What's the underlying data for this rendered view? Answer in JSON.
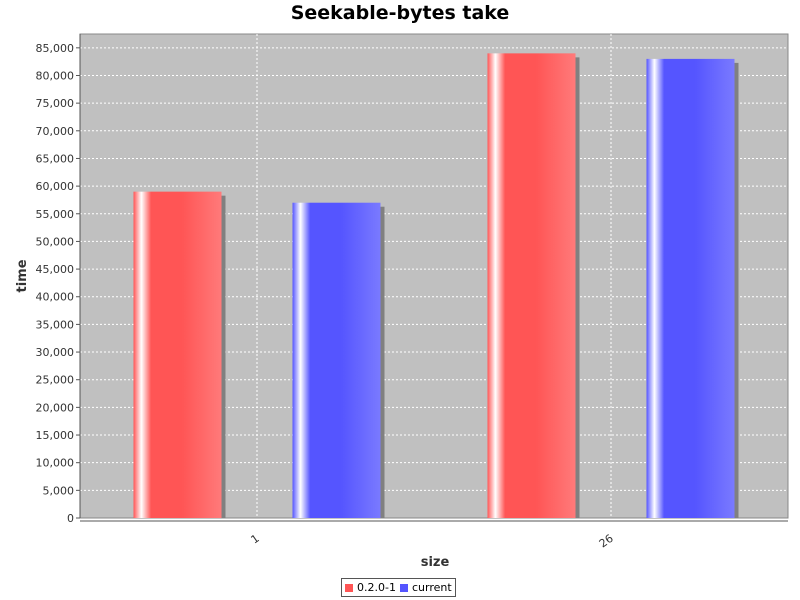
{
  "chart_data": {
    "type": "bar",
    "title": "Seekable-bytes take",
    "xlabel": "size",
    "ylabel": "time",
    "categories": [
      "1",
      "26"
    ],
    "series": [
      {
        "name": "0.2.0-1",
        "color": "#ff5555",
        "values": [
          59000,
          84000
        ]
      },
      {
        "name": "current",
        "color": "#5555ff",
        "values": [
          57000,
          83000
        ]
      }
    ],
    "ylim": [
      0,
      87500
    ],
    "yticks": [
      0,
      5000,
      10000,
      15000,
      20000,
      25000,
      30000,
      35000,
      40000,
      45000,
      50000,
      55000,
      60000,
      65000,
      70000,
      75000,
      80000,
      85000
    ],
    "ytick_labels": [
      "0",
      "5,000",
      "10,000",
      "15,000",
      "20,000",
      "25,000",
      "30,000",
      "35,000",
      "40,000",
      "45,000",
      "50,000",
      "55,000",
      "60,000",
      "65,000",
      "70,000",
      "75,000",
      "80,000",
      "85,000"
    ],
    "grid": true,
    "legend_position": "bottom",
    "plot_background": "#c0c0c0"
  }
}
